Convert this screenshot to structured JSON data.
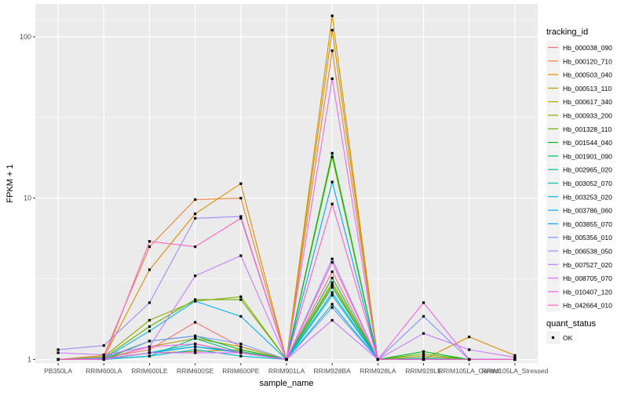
{
  "chart_data": {
    "type": "line",
    "title": "",
    "xlabel": "sample_name",
    "ylabel": "FPKM + 1",
    "y_scale": "log10",
    "ylim": [
      0.95,
      160
    ],
    "y_ticks": [
      1,
      10,
      100
    ],
    "y_tick_labels": [
      "1",
      "10",
      "100"
    ],
    "grid": true,
    "panel_background": "#EBEBEB",
    "legend_position": "right",
    "legend_title": "tracking_id",
    "categories": [
      "PB350LA",
      "RRIM600LA",
      "RRIM600LE",
      "RRIM600SE",
      "RRIM600PE",
      "RRIM901LA",
      "RRIM928BA",
      "RRIM928LA",
      "RRIM928LE",
      "RRIM105LA_Control",
      "RRIM105LA_Stressed"
    ],
    "series": [
      {
        "name": "Hb_000038_090",
        "color": "#F8766D",
        "values": [
          1.0,
          1.02,
          1.15,
          1.7,
          1.2,
          1.0,
          3.5,
          1.0,
          1.0,
          1.0,
          1.0
        ]
      },
      {
        "name": "Hb_000120_710",
        "color": "#EC8239",
        "values": [
          1.0,
          1.06,
          5.0,
          9.8,
          10.0,
          1.0,
          82.0,
          1.0,
          1.0,
          1.0,
          1.0
        ]
      },
      {
        "name": "Hb_000503_040",
        "color": "#DB8E00",
        "values": [
          1.0,
          1.03,
          3.6,
          8.0,
          12.3,
          1.0,
          135.0,
          1.0,
          1.0,
          1.38,
          1.06
        ]
      },
      {
        "name": "Hb_000513_110",
        "color": "#C79800",
        "values": [
          1.0,
          1.0,
          1.1,
          1.12,
          1.15,
          1.0,
          110.0,
          1.0,
          1.0,
          1.0,
          1.0
        ]
      },
      {
        "name": "Hb_000617_340",
        "color": "#AEA200",
        "values": [
          1.0,
          1.01,
          1.2,
          1.35,
          1.2,
          1.0,
          3.0,
          1.0,
          1.05,
          1.0,
          1.0
        ]
      },
      {
        "name": "Hb_000933_200",
        "color": "#8FAA00",
        "values": [
          1.0,
          1.04,
          1.75,
          2.3,
          2.45,
          1.0,
          2.9,
          1.0,
          1.0,
          1.0,
          1.0
        ]
      },
      {
        "name": "Hb_001328_110",
        "color": "#64B200",
        "values": [
          1.0,
          1.02,
          1.6,
          2.35,
          2.35,
          1.0,
          18.0,
          1.0,
          1.08,
          1.0,
          1.0
        ]
      },
      {
        "name": "Hb_001544_040",
        "color": "#00B81B",
        "values": [
          1.0,
          1.0,
          1.3,
          1.4,
          1.15,
          1.0,
          19.0,
          1.0,
          1.12,
          1.0,
          1.0
        ]
      },
      {
        "name": "Hb_001901_090",
        "color": "#00BD5C",
        "values": [
          1.0,
          1.01,
          1.1,
          1.2,
          1.12,
          1.0,
          3.2,
          1.0,
          1.0,
          1.0,
          1.0
        ]
      },
      {
        "name": "Hb_002965_020",
        "color": "#00C08E",
        "values": [
          1.0,
          1.0,
          1.05,
          1.35,
          1.1,
          1.0,
          2.8,
          1.0,
          1.02,
          1.0,
          1.0
        ]
      },
      {
        "name": "Hb_003052_070",
        "color": "#00C1B2",
        "values": [
          1.0,
          1.0,
          1.1,
          1.25,
          1.1,
          1.0,
          2.6,
          1.0,
          1.0,
          1.0,
          1.0
        ]
      },
      {
        "name": "Hb_003253_020",
        "color": "#00BCD1",
        "values": [
          1.0,
          1.0,
          1.05,
          1.15,
          1.05,
          1.0,
          2.2,
          1.0,
          1.0,
          1.0,
          1.0
        ]
      },
      {
        "name": "Hb_003786_060",
        "color": "#00B3EC",
        "values": [
          1.0,
          1.01,
          1.5,
          2.3,
          1.85,
          1.0,
          2.5,
          1.0,
          1.0,
          1.0,
          1.0
        ]
      },
      {
        "name": "Hb_003855_070",
        "color": "#00A5FF",
        "values": [
          1.0,
          1.0,
          1.1,
          1.2,
          1.1,
          1.0,
          12.6,
          1.0,
          1.0,
          1.0,
          1.0
        ]
      },
      {
        "name": "Hb_005356_010",
        "color": "#7997FF",
        "values": [
          1.0,
          1.02,
          1.3,
          1.4,
          1.25,
          1.0,
          2.1,
          1.0,
          1.85,
          1.0,
          1.0
        ]
      },
      {
        "name": "Hb_006538_050",
        "color": "#A58AFF",
        "values": [
          1.15,
          1.22,
          2.25,
          7.5,
          7.7,
          1.0,
          4.2,
          1.0,
          1.0,
          1.0,
          1.0
        ]
      },
      {
        "name": "Hb_007527_020",
        "color": "#C77CFF",
        "values": [
          1.1,
          1.07,
          1.2,
          3.3,
          4.4,
          1.0,
          1.75,
          1.0,
          1.45,
          1.15,
          1.03
        ]
      },
      {
        "name": "Hb_008705_070",
        "color": "#E36EF6",
        "values": [
          1.0,
          1.0,
          1.1,
          1.1,
          1.1,
          1.0,
          55.0,
          1.0,
          1.0,
          1.0,
          1.0
        ]
      },
      {
        "name": "Hb_010407_120",
        "color": "#F564E3",
        "values": [
          1.0,
          1.0,
          1.2,
          1.25,
          1.1,
          1.0,
          4.0,
          1.0,
          2.25,
          1.0,
          1.0
        ]
      },
      {
        "name": "Hb_042664_010",
        "color": "#FF61C3",
        "values": [
          1.0,
          1.0,
          5.4,
          5.0,
          7.5,
          1.0,
          9.2,
          1.0,
          1.0,
          1.0,
          1.0
        ]
      }
    ],
    "legend2_title": "quant_status",
    "legend2_entries": [
      "OK"
    ]
  }
}
